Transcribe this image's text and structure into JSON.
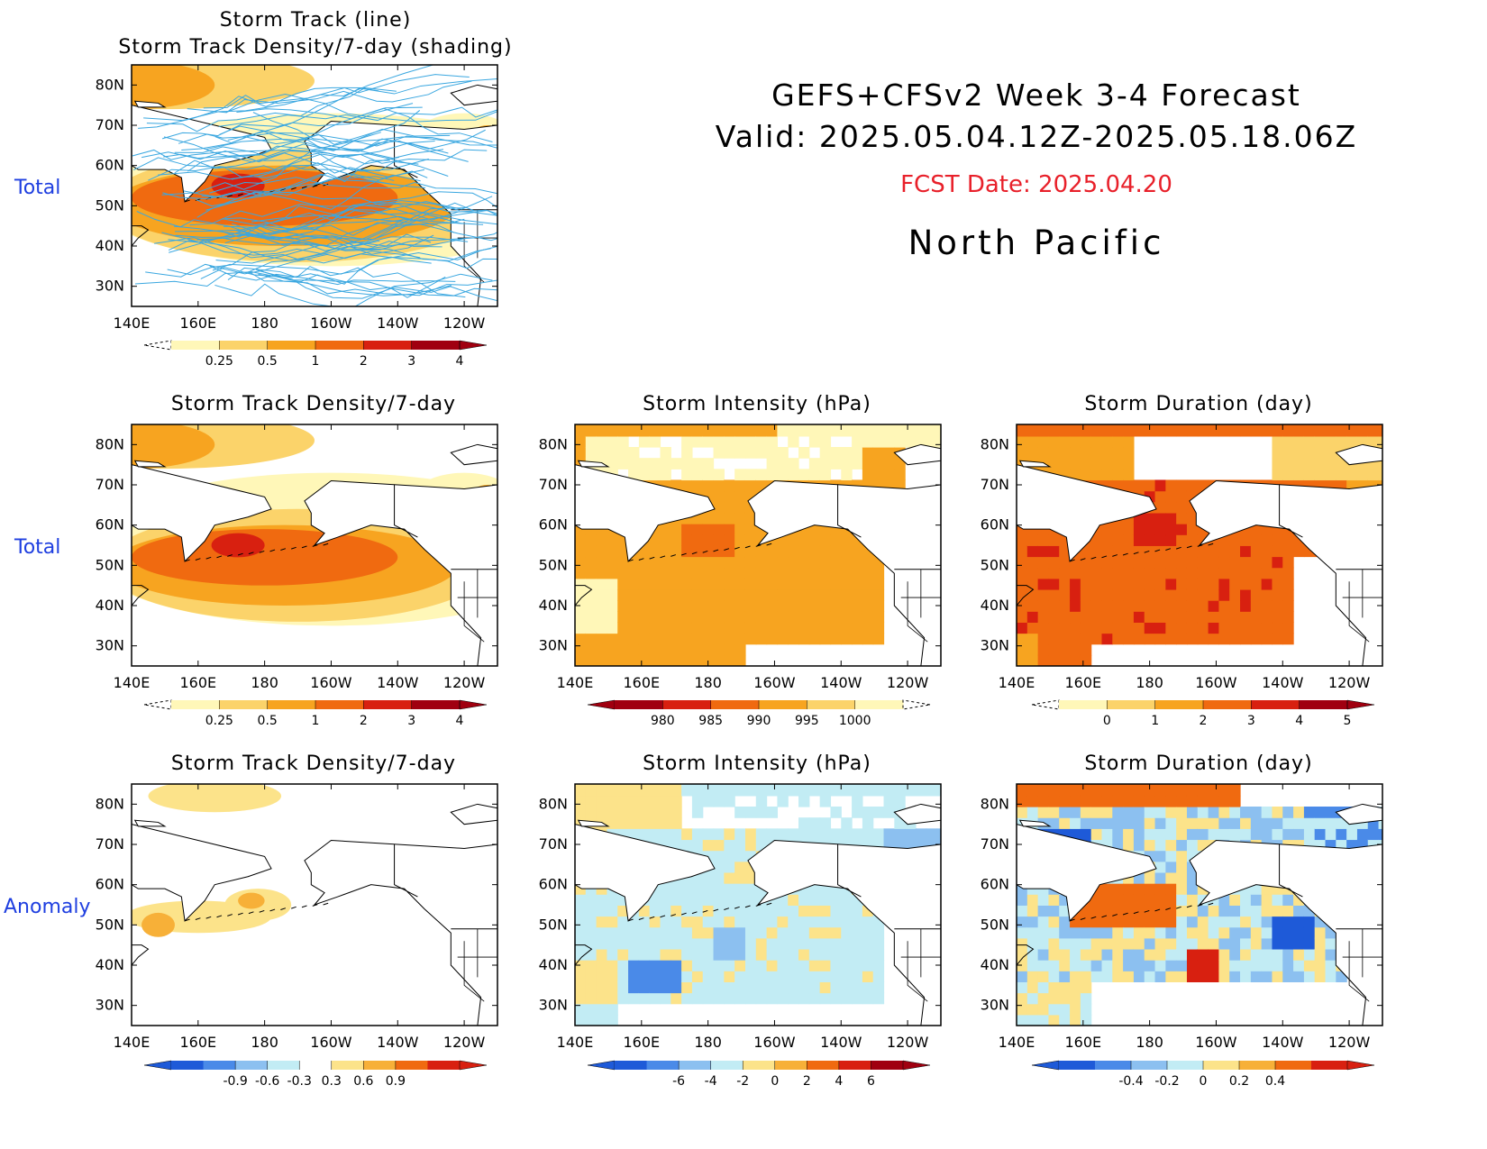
{
  "header": {
    "title": "GEFS+CFSv2 Week 3-4 Forecast",
    "valid": "Valid: 2025.05.04.12Z-2025.05.18.06Z",
    "fcst_date": "FCST Date: 2025.04.20",
    "region": "North Pacific"
  },
  "row_labels": {
    "row1": "Total",
    "row2": "Total",
    "row3": "Anomaly"
  },
  "axes": {
    "lat_ticks": [
      "80N",
      "70N",
      "60N",
      "50N",
      "40N",
      "30N"
    ],
    "lon_ticks": [
      "140E",
      "160E",
      "180",
      "160W",
      "140W",
      "120W"
    ]
  },
  "panels": {
    "p_top": {
      "title_line1": "Storm Track (line)",
      "title_line2": "Storm Track Density/7-day (shading)"
    },
    "p_tot_density": {
      "title": "Storm Track Density/7-day"
    },
    "p_tot_intensity": {
      "title": "Storm Intensity (hPa)"
    },
    "p_tot_duration": {
      "title": "Storm Duration (day)"
    },
    "p_anom_density": {
      "title": "Storm Track Density/7-day"
    },
    "p_anom_intensity": {
      "title": "Storm Intensity (hPa)"
    },
    "p_anom_duration": {
      "title": "Storm Duration (day)"
    }
  },
  "colorbars": {
    "density_total": {
      "labels": [
        "0.25",
        "0.5",
        "1",
        "2",
        "3",
        "4"
      ],
      "colors": [
        "#fff7b8",
        "#fbd36a",
        "#f7a420",
        "#f06a10",
        "#d82010",
        "#a00010"
      ]
    },
    "intensity_total": {
      "labels": [
        "980",
        "985",
        "990",
        "995",
        "1000"
      ],
      "colors": [
        "#a00010",
        "#d82010",
        "#f06a10",
        "#f7a420",
        "#fbd36a",
        "#fff7b8"
      ]
    },
    "duration_total": {
      "labels": [
        "0",
        "1",
        "2",
        "3",
        "4",
        "5"
      ],
      "colors": [
        "#fff7b8",
        "#fbd36a",
        "#f7a420",
        "#f06a10",
        "#d82010",
        "#a00010"
      ]
    },
    "density_anom": {
      "labels": [
        "-0.9",
        "-0.6",
        "-0.3",
        "0.3",
        "0.6",
        "0.9"
      ],
      "colors": [
        "#1e5ad8",
        "#4a8ae8",
        "#8cc0f0",
        "#c2ecf4",
        "#ffffff",
        "#fce38a",
        "#f7b038",
        "#f06a10",
        "#d82010"
      ]
    },
    "intensity_anom": {
      "labels": [
        "-6",
        "-4",
        "-2",
        "0",
        "2",
        "4",
        "6"
      ],
      "colors": [
        "#1e5ad8",
        "#4a8ae8",
        "#8cc0f0",
        "#c2ecf4",
        "#fce38a",
        "#f7b038",
        "#f06a10",
        "#d82010",
        "#a00010"
      ]
    },
    "duration_anom": {
      "labels": [
        "-0.4",
        "-0.2",
        "0",
        "0.2",
        "0.4"
      ],
      "colors": [
        "#1e5ad8",
        "#4a8ae8",
        "#8cc0f0",
        "#c2ecf4",
        "#fce38a",
        "#f7b038",
        "#f06a10",
        "#d82010"
      ]
    }
  }
}
